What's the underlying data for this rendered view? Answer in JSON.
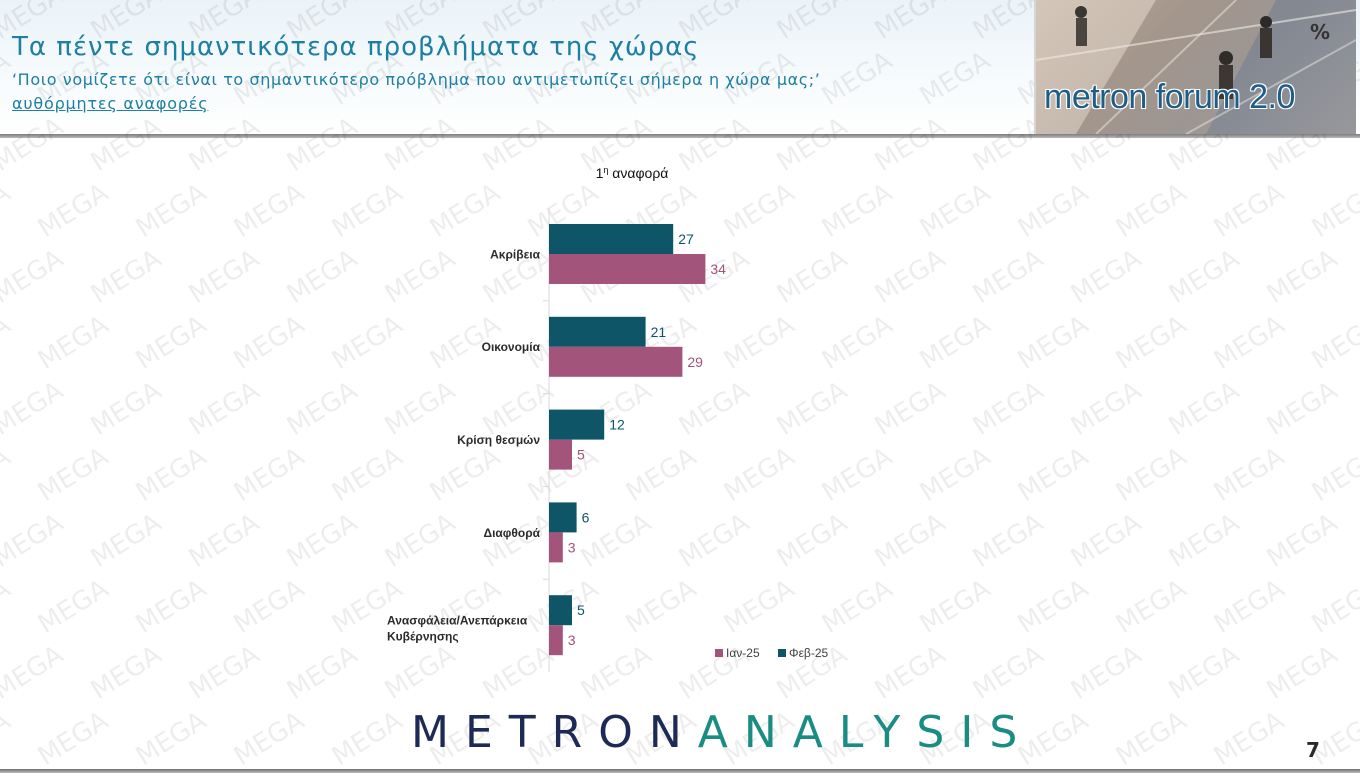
{
  "header": {
    "title": "Τα πέντε σημαντικότερα προβλήματα της χώρας",
    "subtitle": "‘Ποιο νομίζετε ότι είναι το σημαντικότερο πρόβλημα που αντιμετωπίζει σήμερα η χώρα μας;’",
    "note": "αυθόρμητες αναφορές"
  },
  "logo": {
    "text": "metron forum 2.0",
    "unit": "%"
  },
  "watermark": {
    "text": "MEGA"
  },
  "chart_data": {
    "type": "bar",
    "orientation": "horizontal",
    "title": "1η αναφορά",
    "title_base": "1",
    "title_sup": "η",
    "title_rest": " αναφορά",
    "categories": [
      "Ακρίβεια",
      "Οικονομία",
      "Κρίση θεσμών",
      "Διαφθορά",
      "Ανασφάλεια/Ανεπάρκεια Κυβέρνησης"
    ],
    "series": [
      {
        "name": "Φεβ-25",
        "values": [
          27,
          21,
          12,
          6,
          5
        ],
        "color": "#0e5568"
      },
      {
        "name": "Ιαν-25",
        "values": [
          34,
          29,
          5,
          3,
          3
        ],
        "color": "#a2547a"
      }
    ],
    "legend_order": [
      "Ιαν-25",
      "Φεβ-25"
    ],
    "legend_position": "bottom-right",
    "xlim": [
      0,
      60
    ],
    "axis": "none",
    "grid": false,
    "data_labels": true
  },
  "footer": {
    "brand_a": "METRON",
    "brand_b": "ANALYSIS",
    "page": "7"
  }
}
